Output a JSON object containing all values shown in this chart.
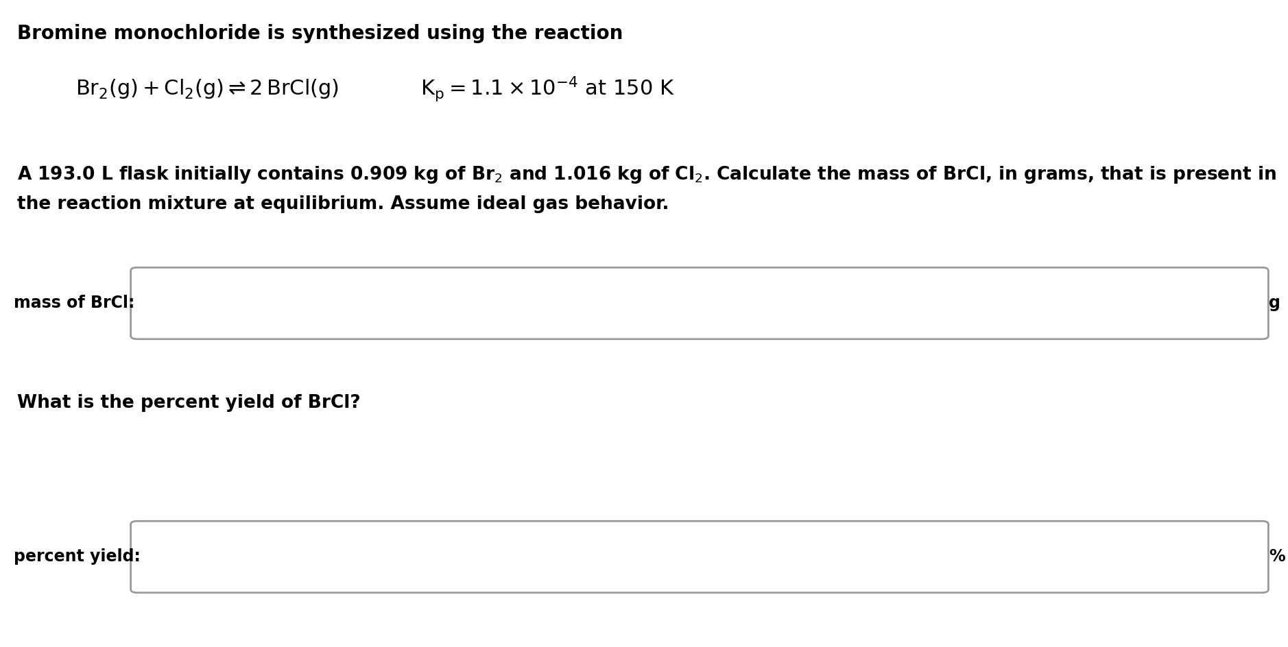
{
  "background_color": "#ffffff",
  "title_line": "Bromine monochloride is synthesized using the reaction",
  "desc_line1": "A 193.0 L flask initially contains 0.909 kg of Br$_2$ and 1.016 kg of Cl$_2$. Calculate the mass of BrCl, in grams, that is present in",
  "desc_line2": "the reaction mixture at equilibrium. Assume ideal gas behavior.",
  "label1": "mass of BrCl:",
  "unit1": "g",
  "label2": "percent yield:",
  "unit2": "%",
  "question2": "What is the percent yield of BrCl?",
  "font_size_title": 20,
  "font_size_reaction": 22,
  "font_size_desc": 19,
  "font_size_label": 17,
  "text_color": "#000000",
  "box_edge_color": "#999999",
  "box_face_color": "#ffffff",
  "fig_width": 18.78,
  "fig_height": 9.44,
  "dpi": 100
}
